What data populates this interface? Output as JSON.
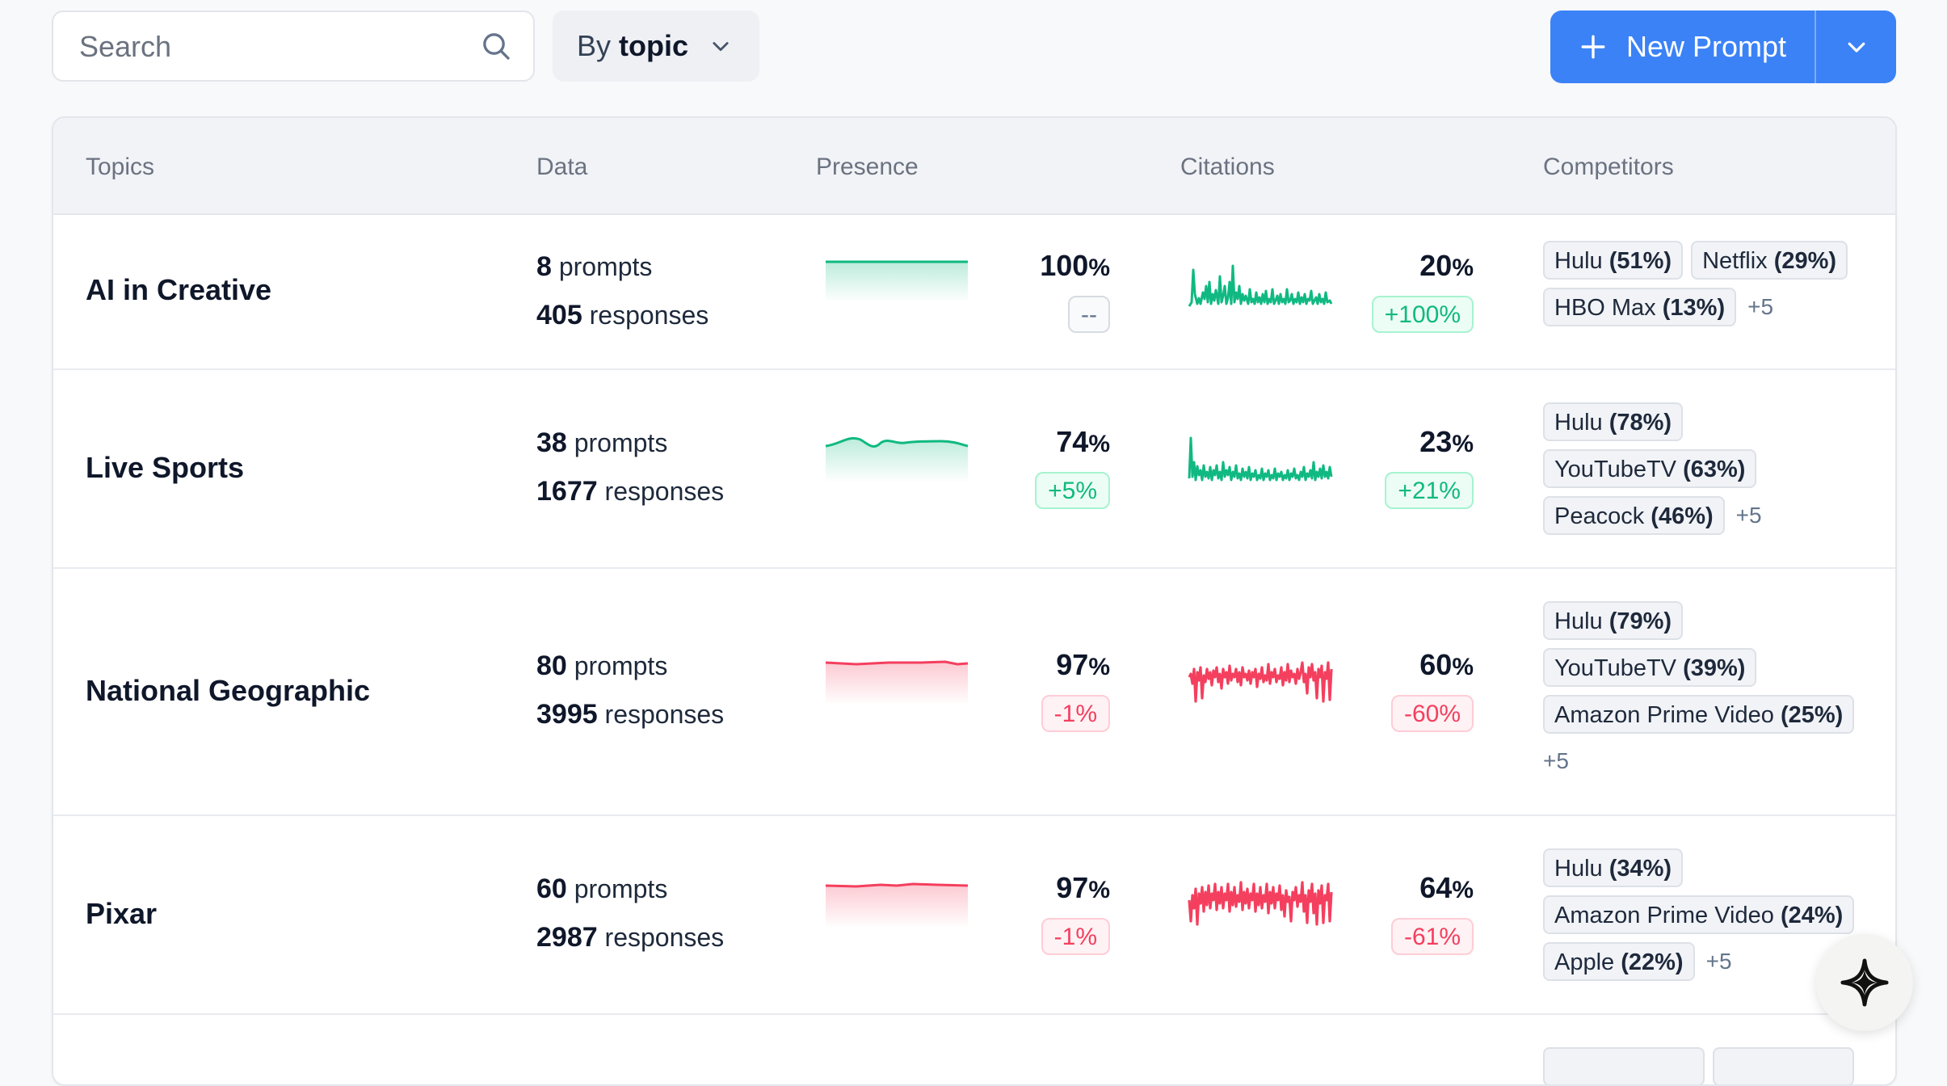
{
  "toolbar": {
    "search_placeholder": "Search",
    "group_prefix": "By",
    "group_value": "topic",
    "new_prompt_label": "New Prompt"
  },
  "table": {
    "headers": {
      "topics": "Topics",
      "data": "Data",
      "presence": "Presence",
      "citations": "Citations",
      "competitors": "Competitors"
    },
    "prompts_word": "prompts",
    "responses_word": "responses",
    "pct_sign": "%",
    "rows": [
      {
        "topic": "AI in Creative",
        "prompts": "8",
        "responses": "405",
        "presence_value": "100",
        "presence_delta": "--",
        "citations_value": "20",
        "citations_delta": "+100%",
        "competitors": [
          {
            "name": "Hulu",
            "share": "(51%)"
          },
          {
            "name": "Netflix",
            "share": "(29%)"
          },
          {
            "name": "HBO Max",
            "share": "(13%)"
          }
        ],
        "more": "+5"
      },
      {
        "topic": "Live Sports",
        "prompts": "38",
        "responses": "1677",
        "presence_value": "74",
        "presence_delta": "+5%",
        "citations_value": "23",
        "citations_delta": "+21%",
        "competitors": [
          {
            "name": "Hulu",
            "share": "(78%)"
          },
          {
            "name": "YouTubeTV",
            "share": "(63%)"
          },
          {
            "name": "Peacock",
            "share": "(46%)"
          }
        ],
        "more": "+5"
      },
      {
        "topic": "National Geographic",
        "prompts": "80",
        "responses": "3995",
        "presence_value": "97",
        "presence_delta": "-1%",
        "citations_value": "60",
        "citations_delta": "-60%",
        "competitors": [
          {
            "name": "Hulu",
            "share": "(79%)"
          },
          {
            "name": "YouTubeTV",
            "share": "(39%)"
          },
          {
            "name": "Amazon Prime Video",
            "share": "(25%)"
          }
        ],
        "more": "+5"
      },
      {
        "topic": "Pixar",
        "prompts": "60",
        "responses": "2987",
        "presence_value": "97",
        "presence_delta": "-1%",
        "citations_value": "64",
        "citations_delta": "-61%",
        "competitors": [
          {
            "name": "Hulu",
            "share": "(34%)"
          },
          {
            "name": "Amazon Prime Video",
            "share": "(24%)"
          },
          {
            "name": "Apple",
            "share": "(22%)"
          }
        ],
        "more": "+5"
      }
    ]
  },
  "colors": {
    "accent": "#3b82f6",
    "positive": "#10b981",
    "negative": "#f43f5e"
  },
  "icons": [
    "search-icon",
    "chevron-down-icon",
    "plus-icon",
    "sparkle-star-icon"
  ]
}
